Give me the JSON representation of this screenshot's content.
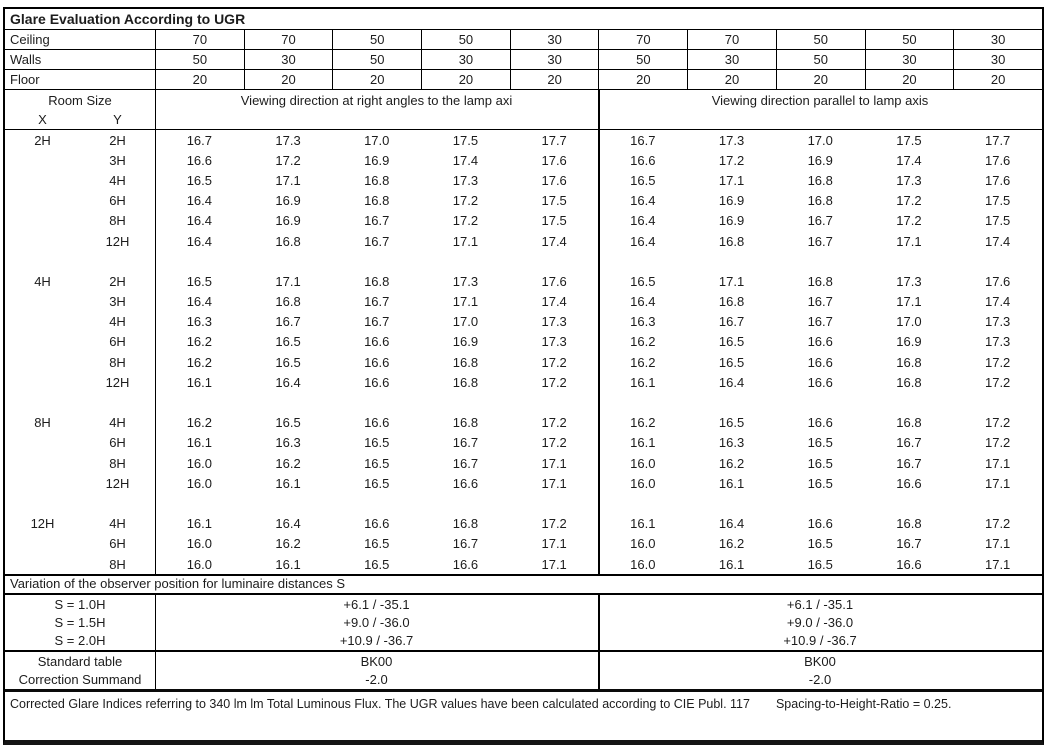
{
  "title": "Glare Evaluation According to UGR",
  "colors": {
    "border": "#000000",
    "text": "#1c1c1c",
    "background": "#ffffff"
  },
  "surface_rows": [
    {
      "label": "Ceiling",
      "values": [
        "70",
        "70",
        "50",
        "50",
        "30",
        "70",
        "70",
        "50",
        "50",
        "30"
      ]
    },
    {
      "label": "Walls",
      "values": [
        "50",
        "30",
        "50",
        "30",
        "30",
        "50",
        "30",
        "50",
        "30",
        "30"
      ]
    },
    {
      "label": "Floor",
      "values": [
        "20",
        "20",
        "20",
        "20",
        "20",
        "20",
        "20",
        "20",
        "20",
        "20"
      ]
    }
  ],
  "header": {
    "room_size": "Room Size",
    "x": "X",
    "y": "Y",
    "left": "Viewing direction at right angles to the lamp axi",
    "right": "Viewing direction parallel to lamp axis"
  },
  "ugr": {
    "blocks": [
      {
        "x": "2H",
        "rows": [
          {
            "y": "2H",
            "values": [
              "16.7",
              "17.3",
              "17.0",
              "17.5",
              "17.7",
              "16.7",
              "17.3",
              "17.0",
              "17.5",
              "17.7"
            ]
          },
          {
            "y": "3H",
            "values": [
              "16.6",
              "17.2",
              "16.9",
              "17.4",
              "17.6",
              "16.6",
              "17.2",
              "16.9",
              "17.4",
              "17.6"
            ]
          },
          {
            "y": "4H",
            "values": [
              "16.5",
              "17.1",
              "16.8",
              "17.3",
              "17.6",
              "16.5",
              "17.1",
              "16.8",
              "17.3",
              "17.6"
            ]
          },
          {
            "y": "6H",
            "values": [
              "16.4",
              "16.9",
              "16.8",
              "17.2",
              "17.5",
              "16.4",
              "16.9",
              "16.8",
              "17.2",
              "17.5"
            ]
          },
          {
            "y": "8H",
            "values": [
              "16.4",
              "16.9",
              "16.7",
              "17.2",
              "17.5",
              "16.4",
              "16.9",
              "16.7",
              "17.2",
              "17.5"
            ]
          },
          {
            "y": "12H",
            "values": [
              "16.4",
              "16.8",
              "16.7",
              "17.1",
              "17.4",
              "16.4",
              "16.8",
              "16.7",
              "17.1",
              "17.4"
            ]
          }
        ]
      },
      {
        "x": "4H",
        "rows": [
          {
            "y": "2H",
            "values": [
              "16.5",
              "17.1",
              "16.8",
              "17.3",
              "17.6",
              "16.5",
              "17.1",
              "16.8",
              "17.3",
              "17.6"
            ]
          },
          {
            "y": "3H",
            "values": [
              "16.4",
              "16.8",
              "16.7",
              "17.1",
              "17.4",
              "16.4",
              "16.8",
              "16.7",
              "17.1",
              "17.4"
            ]
          },
          {
            "y": "4H",
            "values": [
              "16.3",
              "16.7",
              "16.7",
              "17.0",
              "17.3",
              "16.3",
              "16.7",
              "16.7",
              "17.0",
              "17.3"
            ]
          },
          {
            "y": "6H",
            "values": [
              "16.2",
              "16.5",
              "16.6",
              "16.9",
              "17.3",
              "16.2",
              "16.5",
              "16.6",
              "16.9",
              "17.3"
            ]
          },
          {
            "y": "8H",
            "values": [
              "16.2",
              "16.5",
              "16.6",
              "16.8",
              "17.2",
              "16.2",
              "16.5",
              "16.6",
              "16.8",
              "17.2"
            ]
          },
          {
            "y": "12H",
            "values": [
              "16.1",
              "16.4",
              "16.6",
              "16.8",
              "17.2",
              "16.1",
              "16.4",
              "16.6",
              "16.8",
              "17.2"
            ]
          }
        ]
      },
      {
        "x": "8H",
        "rows": [
          {
            "y": "4H",
            "values": [
              "16.2",
              "16.5",
              "16.6",
              "16.8",
              "17.2",
              "16.2",
              "16.5",
              "16.6",
              "16.8",
              "17.2"
            ]
          },
          {
            "y": "6H",
            "values": [
              "16.1",
              "16.3",
              "16.5",
              "16.7",
              "17.2",
              "16.1",
              "16.3",
              "16.5",
              "16.7",
              "17.2"
            ]
          },
          {
            "y": "8H",
            "values": [
              "16.0",
              "16.2",
              "16.5",
              "16.7",
              "17.1",
              "16.0",
              "16.2",
              "16.5",
              "16.7",
              "17.1"
            ]
          },
          {
            "y": "12H",
            "values": [
              "16.0",
              "16.1",
              "16.5",
              "16.6",
              "17.1",
              "16.0",
              "16.1",
              "16.5",
              "16.6",
              "17.1"
            ]
          }
        ]
      },
      {
        "x": "12H",
        "rows": [
          {
            "y": "4H",
            "values": [
              "16.1",
              "16.4",
              "16.6",
              "16.8",
              "17.2",
              "16.1",
              "16.4",
              "16.6",
              "16.8",
              "17.2"
            ]
          },
          {
            "y": "6H",
            "values": [
              "16.0",
              "16.2",
              "16.5",
              "16.7",
              "17.1",
              "16.0",
              "16.2",
              "16.5",
              "16.7",
              "17.1"
            ]
          },
          {
            "y": "8H",
            "values": [
              "16.0",
              "16.1",
              "16.5",
              "16.6",
              "17.1",
              "16.0",
              "16.1",
              "16.5",
              "16.6",
              "17.1"
            ]
          }
        ]
      }
    ]
  },
  "variation": {
    "title": "Variation of the observer position for luminaire distances S",
    "rows": [
      {
        "label": "S = 1.0H",
        "left": "+6.1 / -35.1",
        "right": "+6.1 / -35.1"
      },
      {
        "label": "S = 1.5H",
        "left": "+9.0 / -36.0",
        "right": "+9.0 / -36.0"
      },
      {
        "label": "S = 2.0H",
        "left": "+10.9 / -36.7",
        "right": "+10.9 / -36.7"
      }
    ]
  },
  "summary": {
    "rows": [
      {
        "label": "Standard table",
        "left": "BK00",
        "right": "BK00"
      },
      {
        "label": "Correction Summand",
        "left": "-2.0",
        "right": "-2.0"
      }
    ]
  },
  "footer": {
    "main": "Corrected Glare Indices referring to 340 lm lm Total Luminous Flux. The UGR values have been calculated according to CIE Publ. 117",
    "ratio": "Spacing-to-Height-Ratio = 0.25."
  }
}
